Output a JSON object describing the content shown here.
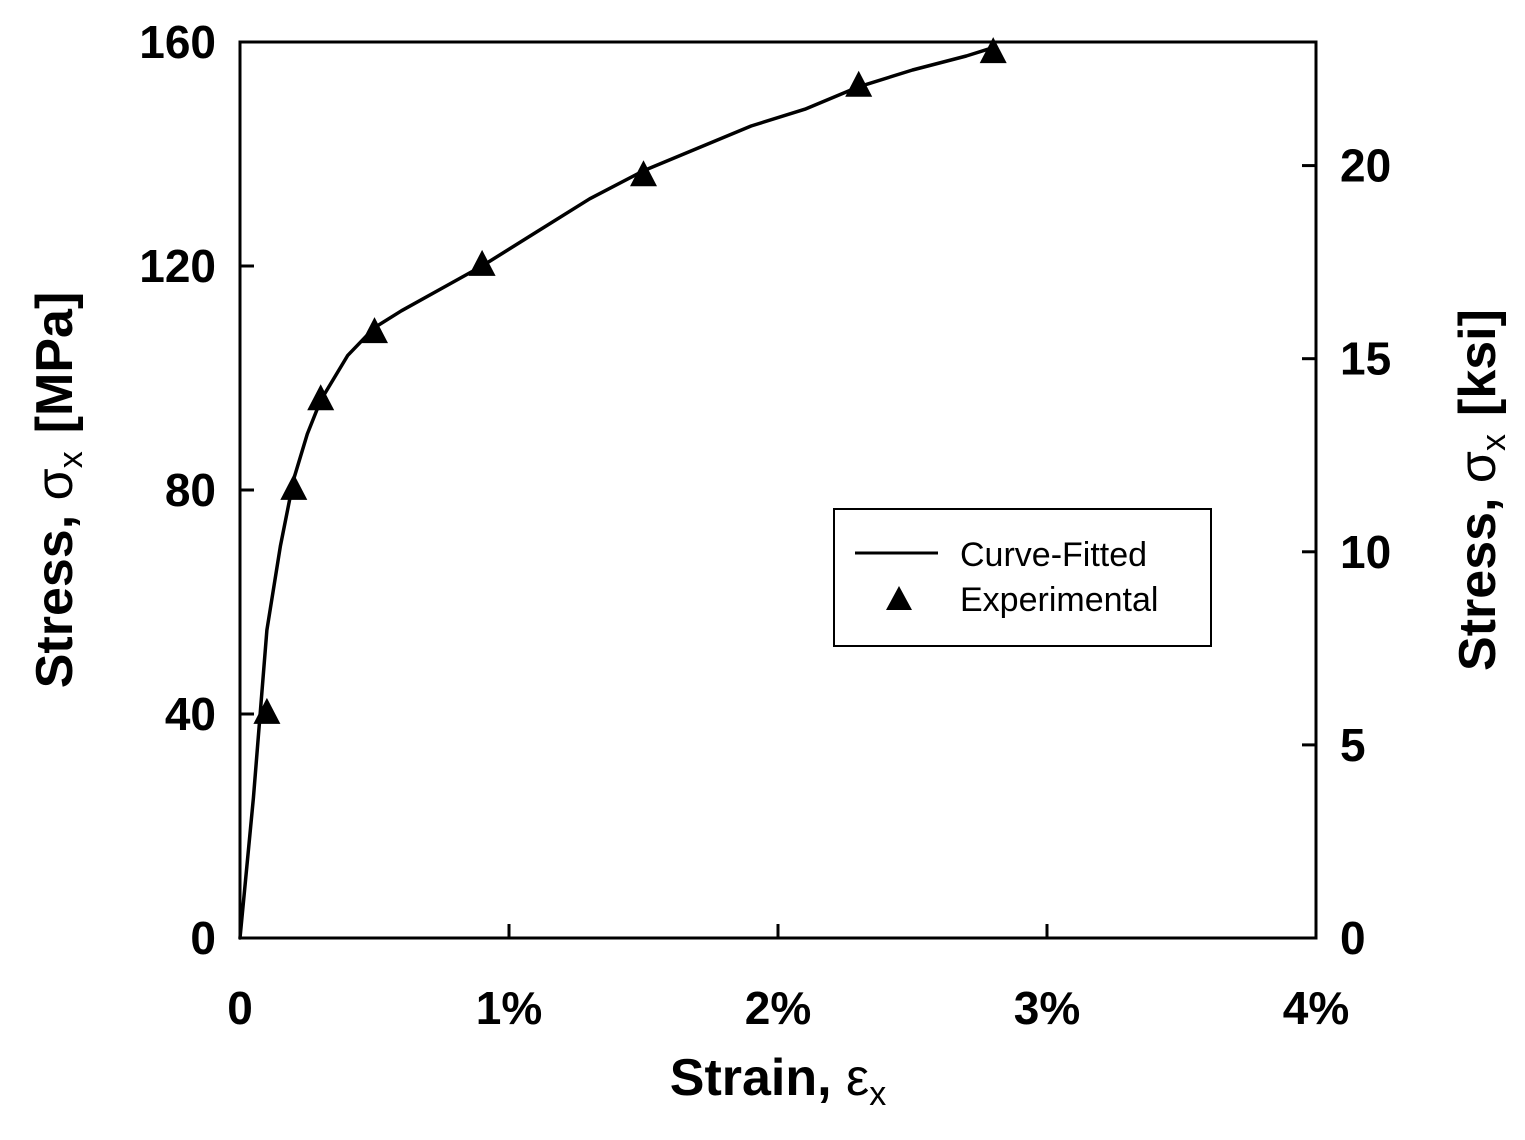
{
  "chart_data": {
    "type": "line",
    "title": "",
    "xlabel": {
      "text": "Strain, ",
      "symbol": "ε",
      "subscript": "x"
    },
    "ylabel_left": {
      "text": "Stress, ",
      "symbol": "σ",
      "subscript": "x",
      "unit": "[MPa]"
    },
    "ylabel_right": {
      "text": "Stress, ",
      "symbol": "σ",
      "subscript": "x",
      "unit": "[ksi]"
    },
    "xlim": [
      0,
      4
    ],
    "ylim_left": [
      0,
      160
    ],
    "ylim_right_ksi": [
      0,
      23.2
    ],
    "x_ticks": [
      0,
      1,
      2,
      3,
      4
    ],
    "x_tick_labels": [
      "0",
      "1%",
      "2%",
      "3%",
      "4%"
    ],
    "y_left_ticks": [
      0,
      40,
      80,
      120,
      160
    ],
    "y_left_tick_labels": [
      "0",
      "40",
      "80",
      "120",
      "160"
    ],
    "y_right_ticks": [
      0,
      5,
      10,
      15,
      20
    ],
    "y_right_tick_labels": [
      "0",
      "5",
      "10",
      "15",
      "20"
    ],
    "grid": false,
    "legend_position": "center-right",
    "series": [
      {
        "name": "Curve-Fitted",
        "style": "line",
        "color": "#000000",
        "x": [
          0,
          0.05,
          0.1,
          0.15,
          0.2,
          0.25,
          0.3,
          0.4,
          0.5,
          0.6,
          0.75,
          0.9,
          1.1,
          1.3,
          1.5,
          1.7,
          1.9,
          2.1,
          2.3,
          2.5,
          2.7,
          2.8
        ],
        "y": [
          0,
          25,
          55,
          70,
          82,
          90,
          96,
          104,
          109,
          112,
          116,
          120,
          126,
          132,
          137,
          141,
          145,
          148,
          152,
          155,
          157.5,
          159
        ]
      },
      {
        "name": "Experimental",
        "style": "marker-triangle",
        "color": "#000000",
        "x": [
          0.1,
          0.2,
          0.3,
          0.5,
          0.9,
          1.5,
          2.3,
          2.8
        ],
        "y": [
          40,
          80,
          96,
          108,
          120,
          136,
          152,
          158
        ]
      }
    ]
  }
}
